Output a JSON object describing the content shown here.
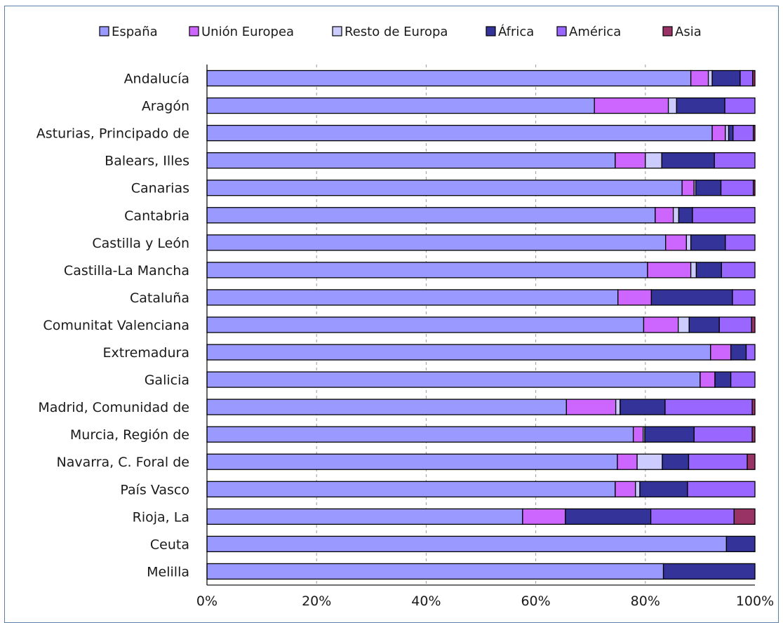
{
  "chart_data": {
    "type": "bar",
    "orientation": "horizontal",
    "stacked": "percent",
    "title": "",
    "xlabel": "",
    "ylabel": "",
    "xlim": [
      0,
      100
    ],
    "x_ticks": [
      "0%",
      "20%",
      "40%",
      "60%",
      "80%",
      "100%"
    ],
    "grid": "vertical dashed",
    "legend_position": "top",
    "categories": [
      "Andalucía",
      "Aragón",
      "Asturias, Principado de",
      "Balears, Illes",
      "Canarias",
      "Cantabria",
      "Castilla y León",
      "Castilla-La Mancha",
      "Cataluña",
      "Comunitat Valenciana",
      "Extremadura",
      "Galicia",
      "Madrid, Comunidad de",
      "Murcia, Región de",
      "Navarra, C. Foral de",
      "País Vasco",
      "Rioja, La",
      "Ceuta",
      "Melilla"
    ],
    "series": [
      {
        "name": "España",
        "color": "#9999ff",
        "values": [
          88.3,
          70.7,
          92.2,
          74.5,
          86.7,
          81.8,
          83.7,
          80.4,
          75.0,
          79.7,
          91.9,
          90.0,
          65.6,
          77.8,
          74.9,
          74.5,
          57.6,
          94.8,
          83.3
        ]
      },
      {
        "name": "Unión Europea",
        "color": "#cc66ff",
        "values": [
          3.2,
          13.5,
          2.4,
          5.5,
          2.2,
          3.3,
          3.8,
          7.9,
          6.1,
          6.3,
          3.7,
          2.7,
          9.0,
          1.8,
          3.6,
          3.7,
          7.8,
          0.0,
          0.0
        ]
      },
      {
        "name": "Resto de Europa",
        "color": "#ccccff",
        "values": [
          0.7,
          1.5,
          0.6,
          3.0,
          0.3,
          1.0,
          0.8,
          1.0,
          0.0,
          2.0,
          0.0,
          0.0,
          0.8,
          0.3,
          4.6,
          0.8,
          0.0,
          0.0,
          0.0
        ]
      },
      {
        "name": "África",
        "color": "#333399",
        "values": [
          5.1,
          8.8,
          0.8,
          9.6,
          4.6,
          2.5,
          6.3,
          4.6,
          14.8,
          5.5,
          2.8,
          2.9,
          8.2,
          9.0,
          4.8,
          8.7,
          15.6,
          5.2,
          16.7
        ]
      },
      {
        "name": "América",
        "color": "#9966ff",
        "values": [
          2.3,
          5.5,
          3.7,
          7.4,
          5.9,
          11.4,
          5.4,
          6.1,
          4.1,
          5.9,
          1.6,
          4.4,
          15.9,
          10.6,
          10.7,
          12.3,
          15.2,
          0.0,
          0.0
        ]
      },
      {
        "name": "Asia",
        "color": "#993366",
        "values": [
          0.4,
          0.0,
          0.3,
          0.0,
          0.3,
          0.0,
          0.0,
          0.0,
          0.0,
          0.6,
          0.0,
          0.0,
          0.5,
          0.5,
          1.4,
          0.0,
          3.8,
          0.0,
          0.0
        ]
      }
    ]
  }
}
